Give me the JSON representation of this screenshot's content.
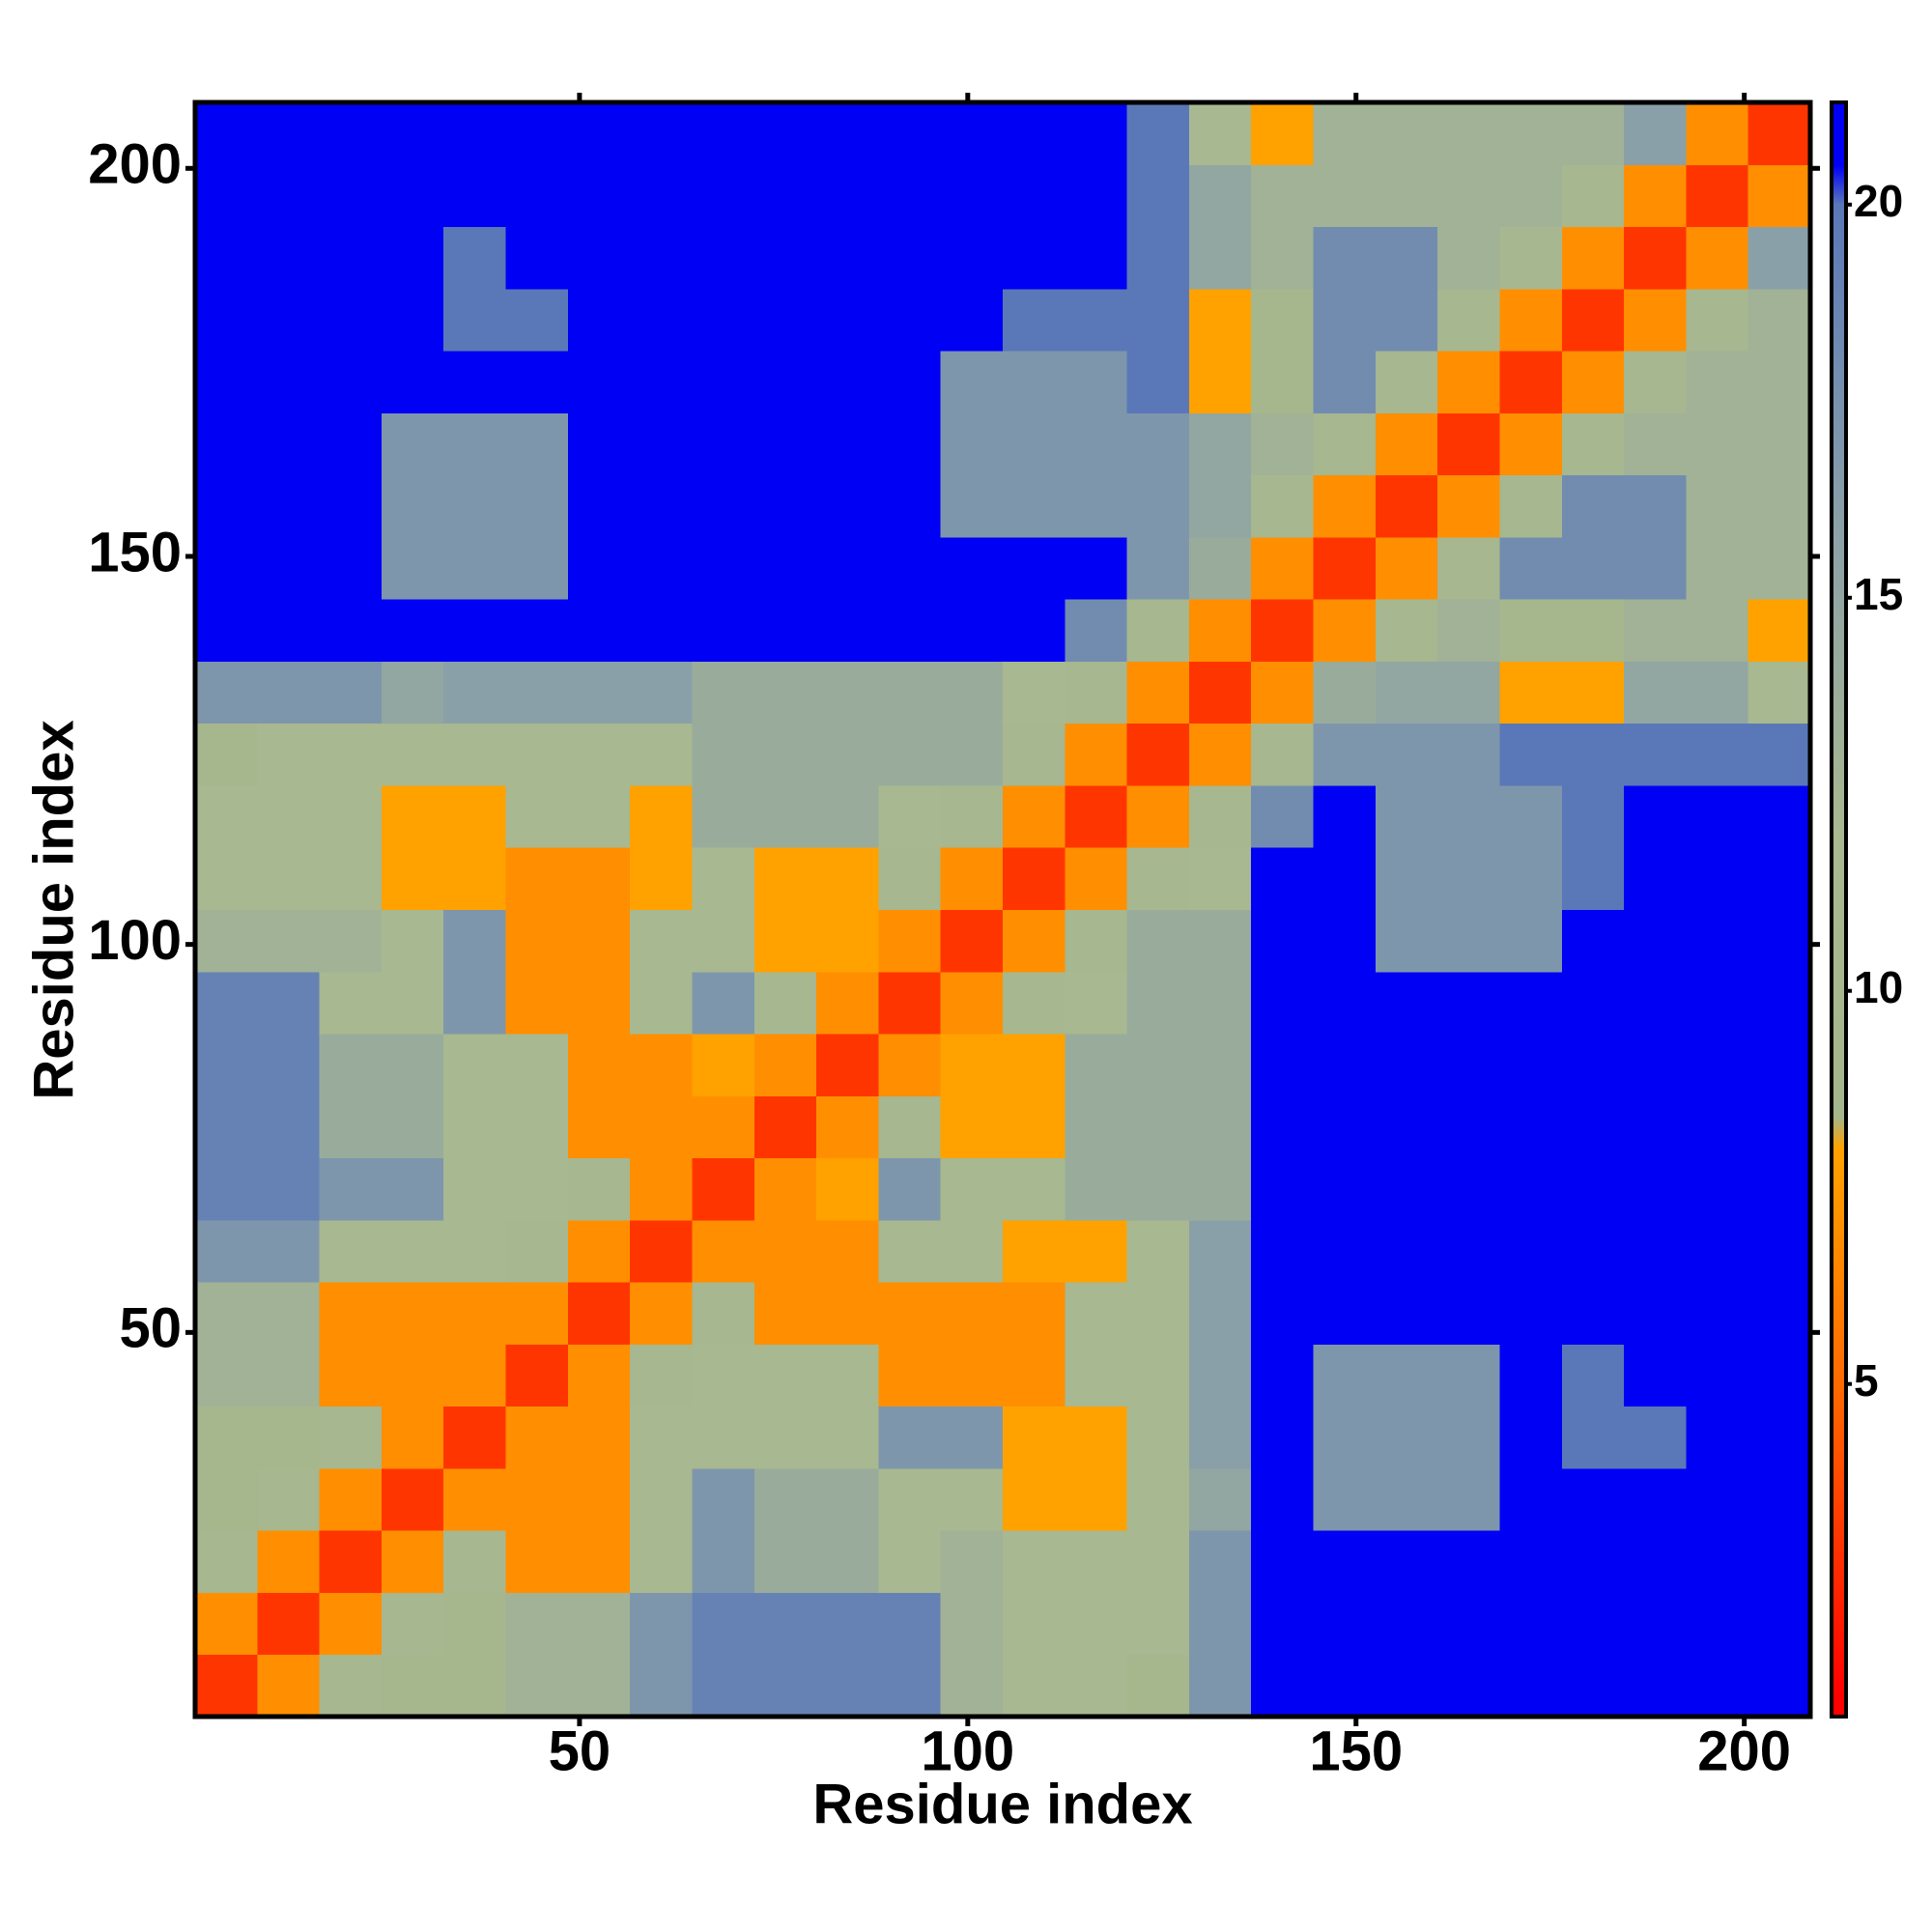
{
  "chart_data": {
    "type": "heatmap",
    "xlabel": "Residue index",
    "ylabel": "Residue index",
    "x": [
      4.5,
      12.5,
      20.5,
      28.5,
      36.5,
      44.5,
      52.5,
      60.5,
      68.5,
      76.5,
      84.5,
      92.5,
      100.5,
      108.5,
      116.5,
      124.5,
      132.5,
      140.5,
      148.5,
      156.5,
      164.5,
      172.5,
      180.5,
      188.5,
      196.5,
      204.5
    ],
    "y": [
      4.5,
      12.5,
      20.5,
      28.5,
      36.5,
      44.5,
      52.5,
      60.5,
      68.5,
      76.5,
      84.5,
      92.5,
      100.5,
      108.5,
      116.5,
      124.5,
      132.5,
      140.5,
      148.5,
      156.5,
      164.5,
      172.5,
      180.5,
      188.5,
      196.5,
      204.5
    ],
    "z": [
      [
        3,
        7,
        11,
        10,
        10,
        13,
        13,
        17,
        19,
        19,
        19,
        19,
        13,
        12,
        12,
        10,
        17,
        21,
        21,
        21,
        21,
        21,
        21,
        21,
        21,
        21
      ],
      [
        7,
        3,
        7,
        11,
        10,
        13,
        13,
        17,
        19,
        19,
        19,
        19,
        13,
        12,
        12,
        12,
        17,
        21,
        21,
        21,
        21,
        21,
        21,
        21,
        21,
        21
      ],
      [
        11,
        7,
        3,
        7,
        11,
        7,
        7,
        12,
        17,
        14,
        14,
        12,
        13,
        12,
        12,
        12,
        17,
        21,
        21,
        21,
        21,
        21,
        21,
        21,
        21,
        21
      ],
      [
        10,
        11,
        7,
        3,
        7,
        7,
        7,
        12,
        17,
        14,
        14,
        12,
        12,
        8,
        8,
        12,
        15,
        21,
        17,
        17,
        17,
        21,
        21,
        21,
        21,
        21
      ],
      [
        10,
        10,
        11,
        7,
        3,
        7,
        7,
        12,
        12,
        12,
        12,
        17,
        17,
        8,
        8,
        12,
        16,
        21,
        17,
        17,
        17,
        21,
        20,
        20,
        21,
        21
      ],
      [
        13,
        13,
        7,
        7,
        7,
        3,
        7,
        11,
        12,
        12,
        12,
        7,
        7,
        7,
        12,
        12,
        16,
        21,
        17,
        17,
        17,
        21,
        20,
        21,
        21,
        21
      ],
      [
        13,
        13,
        7,
        7,
        7,
        7,
        3,
        7,
        11,
        7,
        7,
        7,
        7,
        7,
        12,
        12,
        16,
        21,
        21,
        21,
        21,
        21,
        21,
        21,
        21,
        21
      ],
      [
        17,
        17,
        12,
        12,
        12,
        11,
        7,
        3,
        7,
        7,
        7,
        12,
        12,
        8,
        8,
        12,
        16,
        21,
        21,
        21,
        21,
        21,
        21,
        21,
        21,
        21
      ],
      [
        19,
        19,
        17,
        17,
        12,
        12,
        11,
        7,
        3,
        7,
        8,
        17,
        12,
        12,
        14,
        14,
        14,
        21,
        21,
        21,
        21,
        21,
        21,
        21,
        21,
        21
      ],
      [
        19,
        19,
        14,
        14,
        12,
        12,
        7,
        7,
        7,
        3,
        7,
        11,
        8,
        8,
        14,
        14,
        14,
        21,
        21,
        21,
        21,
        21,
        21,
        21,
        21,
        21
      ],
      [
        19,
        19,
        14,
        14,
        12,
        12,
        7,
        7,
        8,
        7,
        3,
        7,
        8,
        8,
        14,
        14,
        14,
        21,
        21,
        21,
        21,
        21,
        21,
        21,
        21,
        21
      ],
      [
        19,
        19,
        12,
        12,
        17,
        7,
        7,
        12,
        17,
        11,
        7,
        3,
        7,
        11,
        12,
        14,
        14,
        21,
        21,
        21,
        21,
        21,
        21,
        21,
        21,
        21
      ],
      [
        13,
        13,
        13,
        12,
        17,
        7,
        7,
        12,
        12,
        8,
        8,
        7,
        3,
        7,
        11,
        14,
        14,
        21,
        21,
        17,
        17,
        17,
        21,
        21,
        21,
        21
      ],
      [
        12,
        12,
        12,
        8,
        8,
        7,
        7,
        8,
        12,
        8,
        8,
        11,
        7,
        3,
        7,
        11,
        12,
        21,
        21,
        17,
        17,
        17,
        20,
        21,
        21,
        21
      ],
      [
        12,
        12,
        12,
        8,
        8,
        12,
        12,
        8,
        14,
        14,
        14,
        12,
        11,
        7,
        3,
        7,
        11,
        18,
        21,
        17,
        17,
        17,
        20,
        21,
        21,
        21
      ],
      [
        10,
        12,
        12,
        12,
        12,
        12,
        12,
        12,
        14,
        14,
        14,
        14,
        14,
        11,
        7,
        3,
        7,
        11,
        17,
        17,
        17,
        20,
        20,
        20,
        20,
        20
      ],
      [
        17,
        17,
        17,
        15,
        16,
        16,
        16,
        16,
        14,
        14,
        14,
        14,
        14,
        12,
        11,
        7,
        3,
        7,
        14,
        15,
        15,
        8,
        8,
        15,
        15,
        12
      ],
      [
        21,
        21,
        21,
        21,
        21,
        21,
        21,
        21,
        21,
        21,
        21,
        21,
        21,
        21,
        18,
        11,
        7,
        3,
        7,
        11,
        13,
        10,
        10,
        13,
        13,
        8
      ],
      [
        21,
        21,
        21,
        17,
        17,
        17,
        21,
        21,
        21,
        21,
        21,
        21,
        21,
        21,
        21,
        17,
        14,
        7,
        3,
        7,
        11,
        18,
        18,
        18,
        13,
        13
      ],
      [
        21,
        21,
        21,
        17,
        17,
        17,
        21,
        21,
        21,
        21,
        21,
        21,
        17,
        17,
        17,
        17,
        15,
        11,
        7,
        3,
        7,
        11,
        18,
        18,
        13,
        13
      ],
      [
        21,
        21,
        21,
        17,
        17,
        17,
        21,
        21,
        21,
        21,
        21,
        21,
        17,
        17,
        17,
        17,
        15,
        13,
        11,
        7,
        3,
        7,
        11,
        13,
        13,
        13
      ],
      [
        21,
        21,
        21,
        21,
        21,
        21,
        21,
        21,
        21,
        21,
        21,
        21,
        17,
        17,
        17,
        20,
        8,
        10,
        18,
        11,
        7,
        3,
        7,
        11,
        13,
        13
      ],
      [
        21,
        21,
        21,
        21,
        20,
        20,
        21,
        21,
        21,
        21,
        21,
        21,
        21,
        20,
        20,
        20,
        8,
        10,
        18,
        18,
        11,
        7,
        3,
        7,
        11,
        13
      ],
      [
        21,
        21,
        21,
        21,
        20,
        21,
        21,
        21,
        21,
        21,
        21,
        21,
        21,
        21,
        21,
        20,
        15,
        13,
        18,
        18,
        13,
        11,
        7,
        3,
        7,
        16
      ],
      [
        21,
        21,
        21,
        21,
        21,
        21,
        21,
        21,
        21,
        21,
        21,
        21,
        21,
        21,
        21,
        20,
        15,
        13,
        13,
        13,
        13,
        13,
        11,
        7,
        3,
        7
      ],
      [
        21,
        21,
        21,
        21,
        21,
        21,
        21,
        21,
        21,
        21,
        21,
        21,
        21,
        21,
        21,
        20,
        12,
        8,
        13,
        13,
        13,
        13,
        13,
        16,
        7,
        3
      ]
    ],
    "xlim": [
      0.5,
      208.5
    ],
    "ylim": [
      0.5,
      208.5
    ],
    "xticks": [
      50,
      100,
      150,
      200
    ],
    "yticks": [
      50,
      100,
      150,
      200
    ],
    "zlim": [
      0.77,
      21.3
    ],
    "zticks": [
      5,
      10,
      15,
      20
    ],
    "colorscale": [
      [
        1,
        "#ff0000"
      ],
      [
        5,
        "#ff6a00"
      ],
      [
        8,
        "#ffa200"
      ],
      [
        8.4,
        "#a4b68c"
      ],
      [
        12,
        "#a8b890"
      ],
      [
        16,
        "#8aa0a8"
      ],
      [
        20,
        "#5a78b8"
      ],
      [
        20.5,
        "#0000f5"
      ]
    ]
  }
}
